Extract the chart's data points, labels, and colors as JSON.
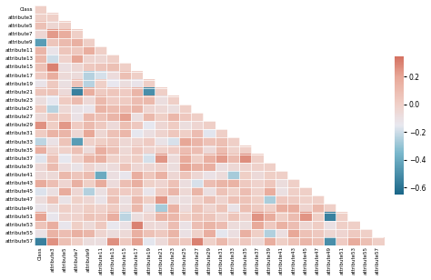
{
  "labels": [
    "Class",
    "attribute3",
    "attribute5",
    "attribute7",
    "attribute9",
    "attribute11",
    "attribute13",
    "attribute15",
    "attribute17",
    "attribute19",
    "attribute21",
    "attribute23",
    "attribute25",
    "attribute27",
    "attribute29",
    "attribute31",
    "attribute33",
    "attribute35",
    "attribute37",
    "attribute39",
    "attribute41",
    "attribute43",
    "attribute45",
    "attribute47",
    "attribute49",
    "attribute51",
    "attribute53",
    "attribute55",
    "attribute57"
  ],
  "vmin": -0.65,
  "vmax": 0.35,
  "colorbar_ticks": [
    0.2,
    0.0,
    -0.2,
    -0.4,
    -0.6
  ],
  "seed": 12345
}
